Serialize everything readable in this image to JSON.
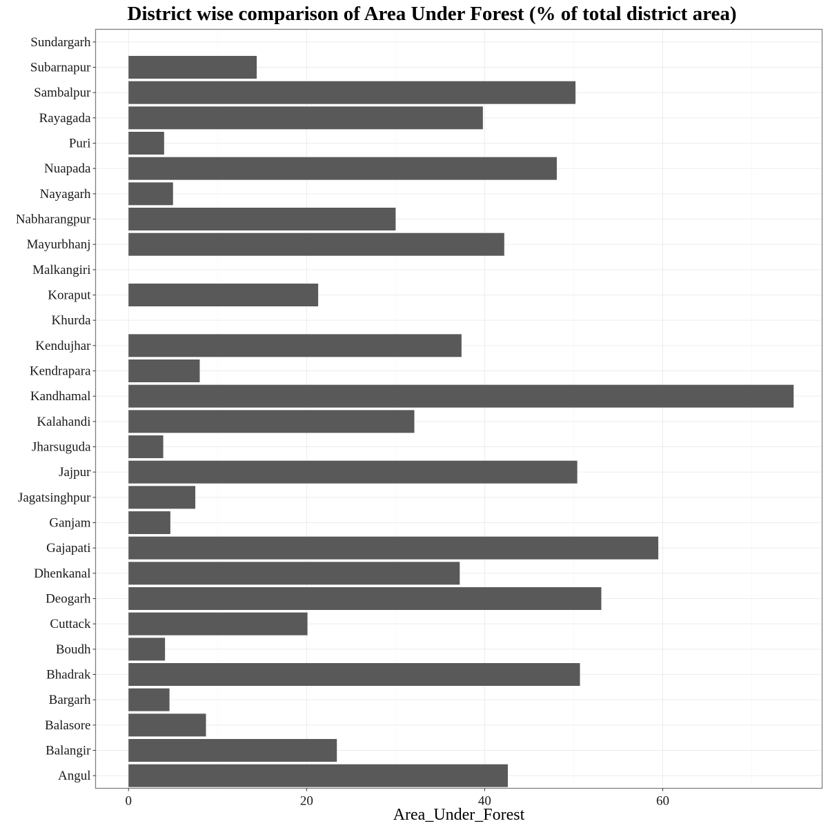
{
  "chart_data": {
    "type": "bar",
    "orientation": "horizontal",
    "title": "District wise comparison of Area Under Forest (% of total district area)",
    "xlabel": "Area_Under_Forest",
    "ylabel": "",
    "xlim": [
      -3.7,
      77.9
    ],
    "x_ticks": [
      0,
      20,
      40,
      60
    ],
    "grid": true,
    "bar_color": "#595959",
    "categories": [
      "Angul",
      "Balangir",
      "Balasore",
      "Bargarh",
      "Bhadrak",
      "Boudh",
      "Cuttack",
      "Deogarh",
      "Dhenkanal",
      "Gajapati",
      "Ganjam",
      "Jagatsinghpur",
      "Jajpur",
      "Jharsuguda",
      "Kalahandi",
      "Kandhamal",
      "Kendrapara",
      "Kendujhar",
      "Khurda",
      "Koraput",
      "Malkangiri",
      "Mayurbhanj",
      "Nabharangpur",
      "Nayagarh",
      "Nuapada",
      "Puri",
      "Rayagada",
      "Sambalpur",
      "Subarnapur",
      "Sundargarh"
    ],
    "values": [
      42.6,
      23.4,
      8.7,
      4.6,
      50.7,
      4.1,
      20.1,
      53.1,
      37.2,
      59.5,
      4.7,
      7.5,
      50.4,
      3.9,
      32.1,
      74.7,
      8.0,
      37.4,
      null,
      21.3,
      null,
      42.2,
      30.0,
      5.0,
      48.1,
      4.0,
      39.8,
      50.2,
      14.4,
      null
    ]
  }
}
